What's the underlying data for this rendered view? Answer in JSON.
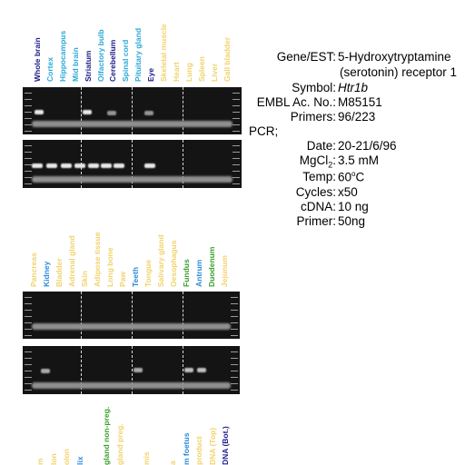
{
  "top_lanes": [
    {
      "label": "Whole brain",
      "color": "#1a1a8a"
    },
    {
      "label": "Cortex",
      "color": "#2aa8d8"
    },
    {
      "label": "Hippocampus",
      "color": "#2aa8d8"
    },
    {
      "label": "Mid brain",
      "color": "#2aa8d8"
    },
    {
      "label": "Striatum",
      "color": "#1a1a8a"
    },
    {
      "label": "Olfactory bulb",
      "color": "#2aa8d8"
    },
    {
      "label": "Cerebellum",
      "color": "#1a1a8a"
    },
    {
      "label": "Spinal cord",
      "color": "#2aa8d8"
    },
    {
      "label": "Pituitary gland",
      "color": "#2aa8d8"
    },
    {
      "label": "Eye",
      "color": "#1a1a8a"
    },
    {
      "label": "Skeletal muscle",
      "color": "#f2d26a"
    },
    {
      "label": "Heart",
      "color": "#f2d26a"
    },
    {
      "label": "Lung",
      "color": "#f2d26a"
    },
    {
      "label": "Spleen",
      "color": "#f2d26a"
    },
    {
      "label": "Liver",
      "color": "#f2d26a"
    },
    {
      "label": "Gall bladder",
      "color": "#f2d26a"
    }
  ],
  "mid_lanes": [
    {
      "label": "Pancreas",
      "color": "#f2d26a"
    },
    {
      "label": "Kidney",
      "color": "#2a8ad8"
    },
    {
      "label": "Bladder",
      "color": "#f2d26a"
    },
    {
      "label": "Adrenal gland",
      "color": "#f2d26a"
    },
    {
      "label": "Skin",
      "color": "#f2d26a"
    },
    {
      "label": "Adipose tissue",
      "color": "#f2d26a"
    },
    {
      "label": "Long bone",
      "color": "#f2d26a"
    },
    {
      "label": "Paw",
      "color": "#f2d26a"
    },
    {
      "label": "Teeth",
      "color": "#2a8ad8"
    },
    {
      "label": "Tongue",
      "color": "#f2d26a"
    },
    {
      "label": "Salivary gland",
      "color": "#f2d26a"
    },
    {
      "label": "Oesophagus",
      "color": "#f2d26a"
    },
    {
      "label": "Fundus",
      "color": "#3aa02a"
    },
    {
      "label": "Antrum",
      "color": "#2a8ad8"
    },
    {
      "label": "Duodenum",
      "color": "#3aa02a"
    },
    {
      "label": "Jejunum",
      "color": "#f2d26a"
    }
  ],
  "bottom_lanes": [
    {
      "label": "m",
      "color": "#f2d26a"
    },
    {
      "label": "lon",
      "color": "#f2d26a"
    },
    {
      "label": "olon",
      "color": "#f2d26a"
    },
    {
      "label": "lix",
      "color": "#2a8ad8"
    },
    {
      "label": "",
      "color": "#f2d26a"
    },
    {
      "label": "gland non-preg.",
      "color": "#3aa02a"
    },
    {
      "label": "gland preg.",
      "color": "#f2d26a"
    },
    {
      "label": "",
      "color": "#f2d26a"
    },
    {
      "label": "mis",
      "color": "#f2d26a"
    },
    {
      "label": "",
      "color": "#f2d26a"
    },
    {
      "label": "a",
      "color": "#f2d26a"
    },
    {
      "label": "m foetus",
      "color": "#2a8ad8"
    },
    {
      "label": "product",
      "color": "#f2d26a"
    },
    {
      "label": "DNA (Top)",
      "color": "#f2d26a"
    },
    {
      "label": "DNA (Bot.)",
      "color": "#1a1a8a"
    }
  ],
  "info": {
    "gene_key": "Gene/EST:",
    "gene_val_1": "5-Hydroxytryptamine",
    "gene_val_2": "(serotonin) receptor 1",
    "symbol_key": "Symbol:",
    "symbol_val": "Htr1b",
    "embl_key": "EMBL Ac. No.:",
    "embl_val": "M85151",
    "primers_key": "Primers:",
    "primers_val": "96/223",
    "pcr_label": "PCR;",
    "date_key": "Date:",
    "date_val": "20-21/6/96",
    "mgcl_key_main": "MgCl",
    "mgcl_key_sub": "2",
    "mgcl_key_end": ":",
    "mgcl_val": "3.5 mM",
    "temp_key": "Temp:",
    "temp_val_num": "60",
    "temp_val_sup": "o",
    "temp_val_unit": "C",
    "cycles_key": "Cycles:",
    "cycles_val": "x50",
    "cdna_key": "cDNA:",
    "cdna_val": "10 ng",
    "primer_key": "Primer:",
    "primer_val": "50ng"
  }
}
